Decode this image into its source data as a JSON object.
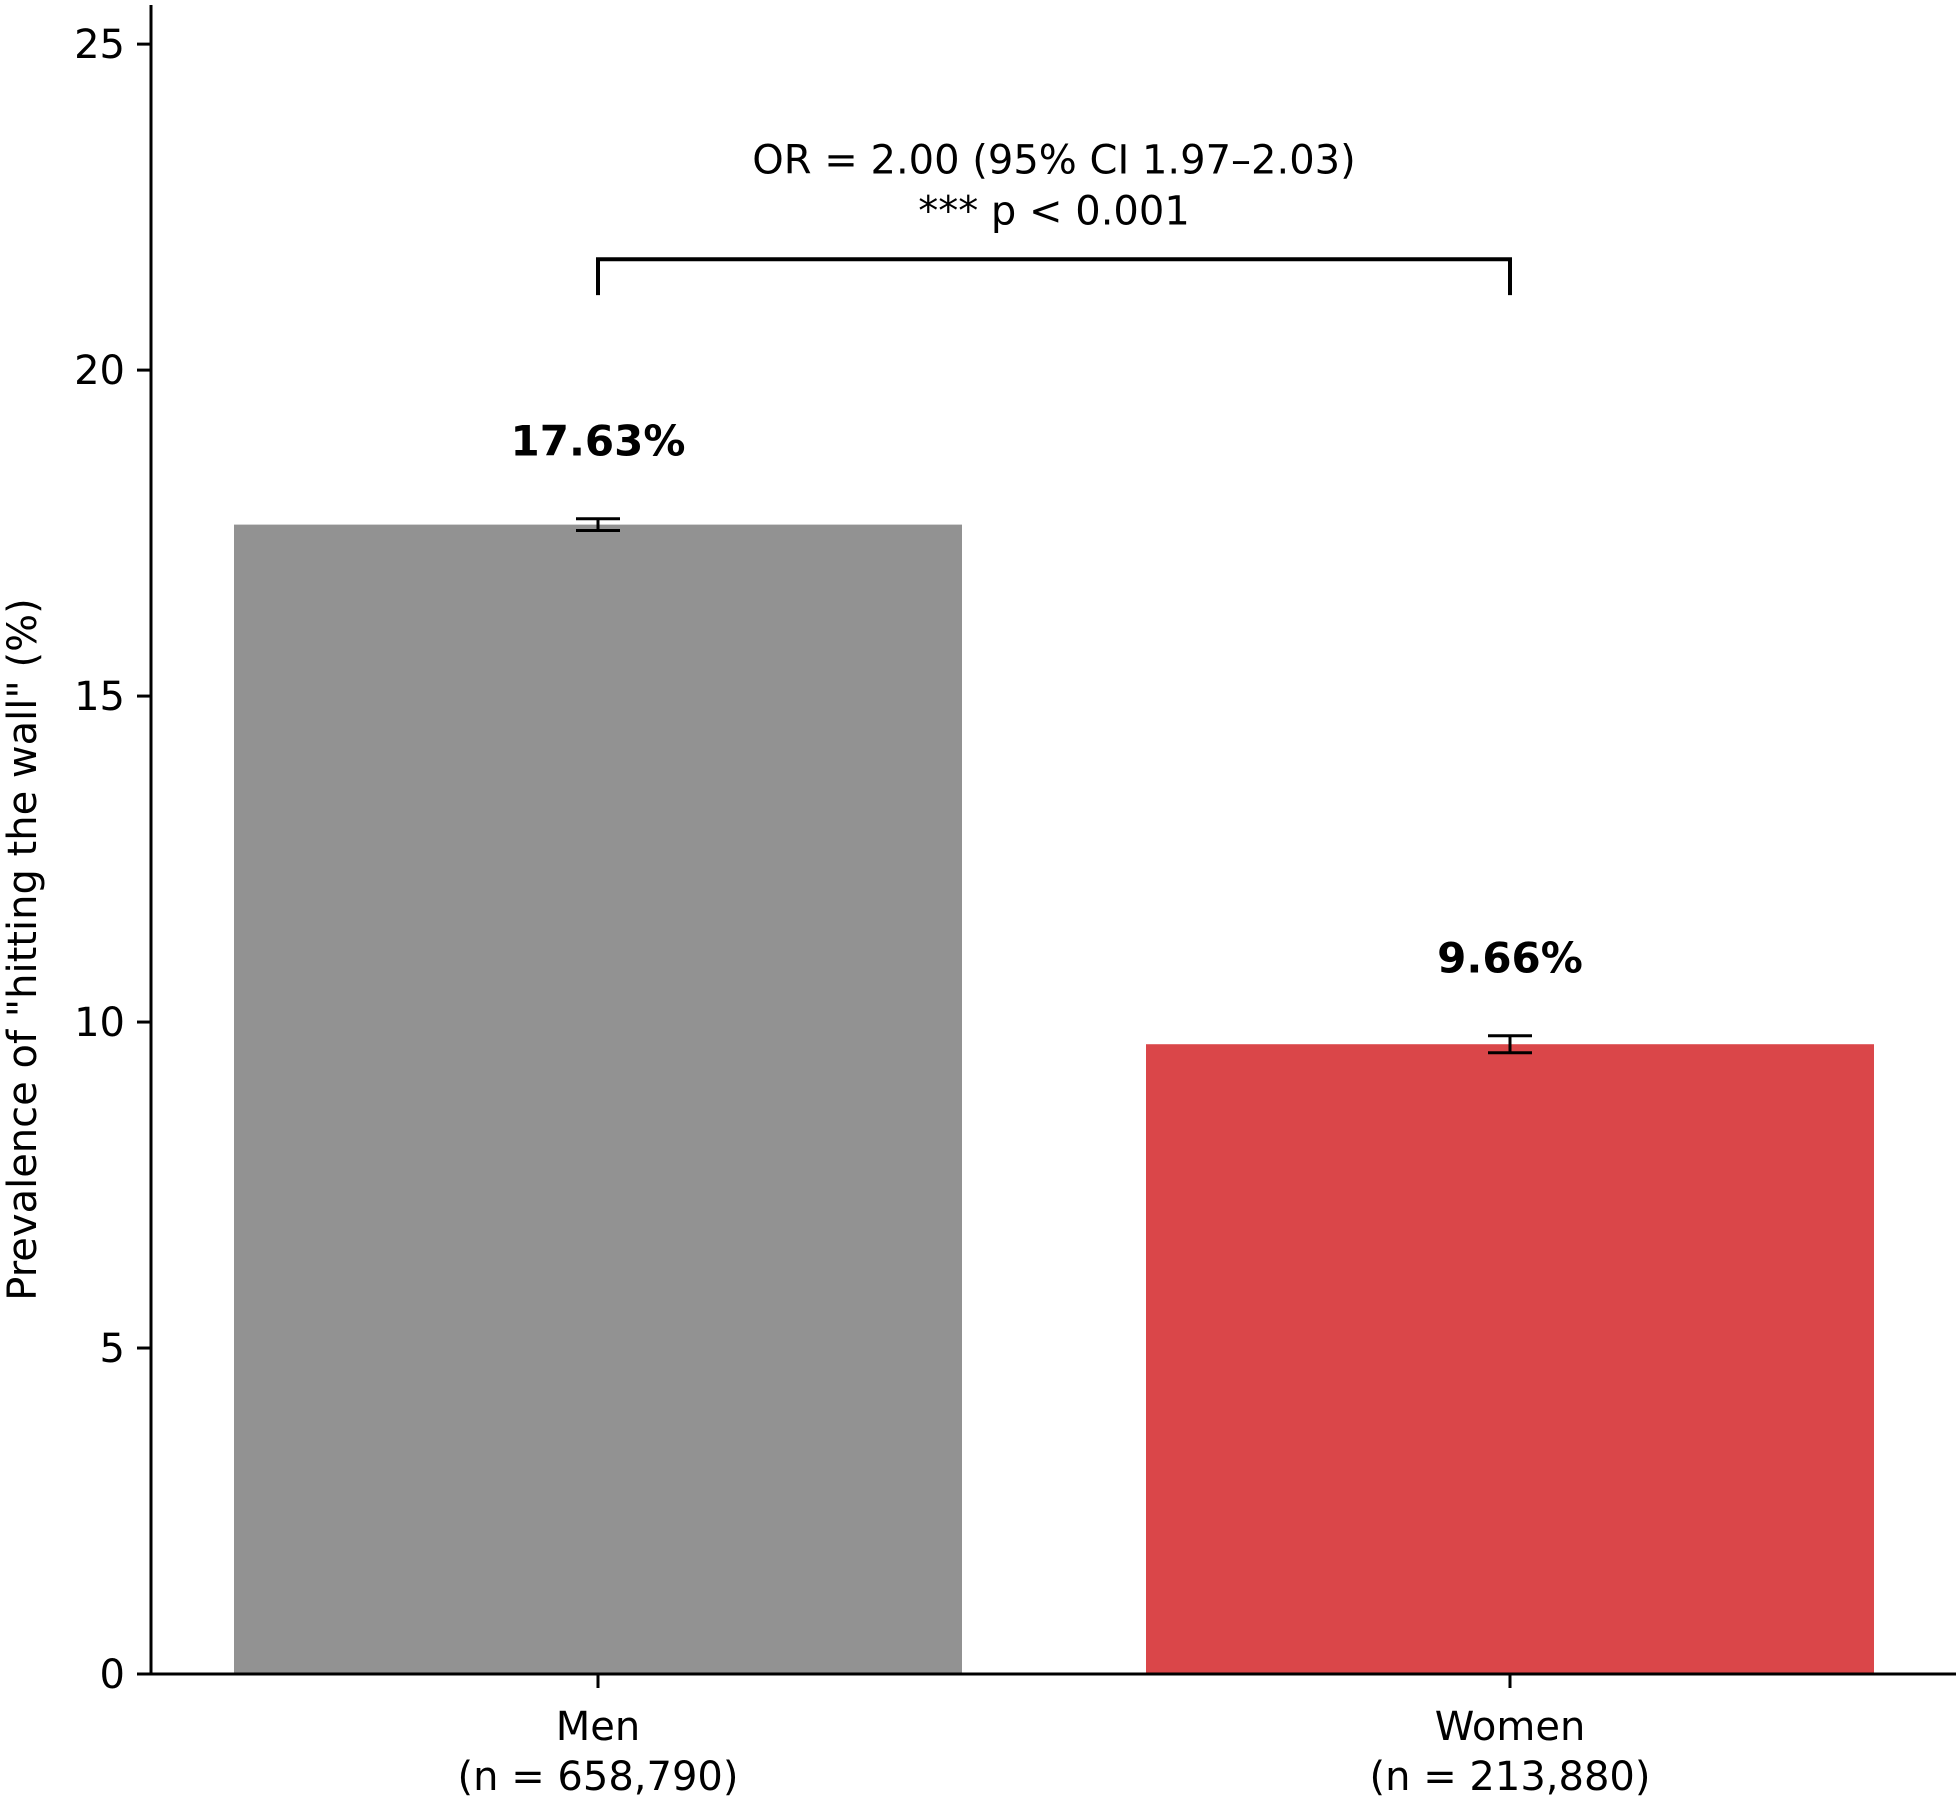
{
  "chart_data": {
    "type": "bar",
    "categories": [
      "Men",
      "Women"
    ],
    "category_sublabels": [
      "(n = 658,790)",
      "(n = 213,880)"
    ],
    "values": [
      17.63,
      9.66
    ],
    "error_bars": [
      [
        17.54,
        17.72
      ],
      [
        9.53,
        9.79
      ]
    ],
    "value_labels": [
      "17.63%",
      "9.66%"
    ],
    "colors": [
      "#929292",
      "#da4649"
    ],
    "ylabel": "Prevalence of \"hitting the wall\" (%)",
    "xlabel": "",
    "ylim": [
      0,
      25.6
    ],
    "yticks": [
      0,
      5,
      10,
      15,
      20,
      25
    ],
    "grid": false,
    "annotation": {
      "line1": "OR = 2.00 (95% CI 1.97–2.03)",
      "line2": "*** p < 0.001",
      "bracket_y": 21.7,
      "bracket_drop": 0.55
    }
  }
}
